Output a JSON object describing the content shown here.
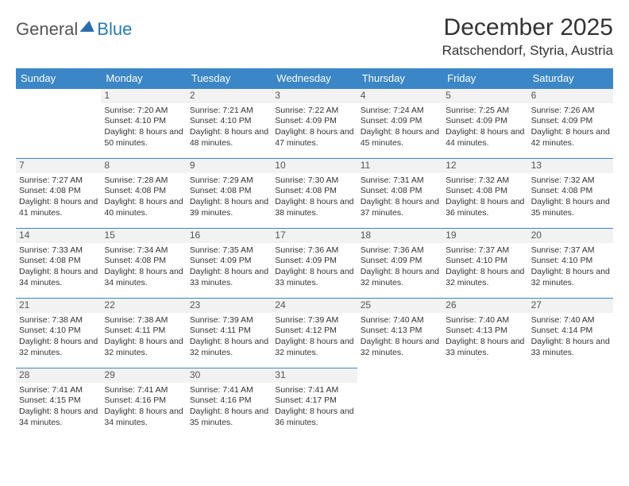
{
  "logo": {
    "part1": "General",
    "part2": "Blue"
  },
  "title": "December 2025",
  "location": "Ratschendorf, Styria, Austria",
  "colors": {
    "header_bg": "#3b86c6",
    "header_text": "#ffffff",
    "daynum_bg": "#f2f2f2",
    "border": "#3b86c6",
    "text": "#333333",
    "logo_gray": "#555555",
    "logo_blue": "#2a7ab0"
  },
  "typography": {
    "title_fontsize": 30,
    "location_fontsize": 17,
    "head_fontsize": 13,
    "cell_fontsize": 10.5
  },
  "layout": {
    "columns": 7,
    "rows": 5,
    "first_weekday_offset": 1
  },
  "weekdays": [
    "Sunday",
    "Monday",
    "Tuesday",
    "Wednesday",
    "Thursday",
    "Friday",
    "Saturday"
  ],
  "days": [
    {
      "n": 1,
      "sunrise": "7:20 AM",
      "sunset": "4:10 PM",
      "daylight": "8 hours and 50 minutes."
    },
    {
      "n": 2,
      "sunrise": "7:21 AM",
      "sunset": "4:10 PM",
      "daylight": "8 hours and 48 minutes."
    },
    {
      "n": 3,
      "sunrise": "7:22 AM",
      "sunset": "4:09 PM",
      "daylight": "8 hours and 47 minutes."
    },
    {
      "n": 4,
      "sunrise": "7:24 AM",
      "sunset": "4:09 PM",
      "daylight": "8 hours and 45 minutes."
    },
    {
      "n": 5,
      "sunrise": "7:25 AM",
      "sunset": "4:09 PM",
      "daylight": "8 hours and 44 minutes."
    },
    {
      "n": 6,
      "sunrise": "7:26 AM",
      "sunset": "4:09 PM",
      "daylight": "8 hours and 42 minutes."
    },
    {
      "n": 7,
      "sunrise": "7:27 AM",
      "sunset": "4:08 PM",
      "daylight": "8 hours and 41 minutes."
    },
    {
      "n": 8,
      "sunrise": "7:28 AM",
      "sunset": "4:08 PM",
      "daylight": "8 hours and 40 minutes."
    },
    {
      "n": 9,
      "sunrise": "7:29 AM",
      "sunset": "4:08 PM",
      "daylight": "8 hours and 39 minutes."
    },
    {
      "n": 10,
      "sunrise": "7:30 AM",
      "sunset": "4:08 PM",
      "daylight": "8 hours and 38 minutes."
    },
    {
      "n": 11,
      "sunrise": "7:31 AM",
      "sunset": "4:08 PM",
      "daylight": "8 hours and 37 minutes."
    },
    {
      "n": 12,
      "sunrise": "7:32 AM",
      "sunset": "4:08 PM",
      "daylight": "8 hours and 36 minutes."
    },
    {
      "n": 13,
      "sunrise": "7:32 AM",
      "sunset": "4:08 PM",
      "daylight": "8 hours and 35 minutes."
    },
    {
      "n": 14,
      "sunrise": "7:33 AM",
      "sunset": "4:08 PM",
      "daylight": "8 hours and 34 minutes."
    },
    {
      "n": 15,
      "sunrise": "7:34 AM",
      "sunset": "4:08 PM",
      "daylight": "8 hours and 34 minutes."
    },
    {
      "n": 16,
      "sunrise": "7:35 AM",
      "sunset": "4:09 PM",
      "daylight": "8 hours and 33 minutes."
    },
    {
      "n": 17,
      "sunrise": "7:36 AM",
      "sunset": "4:09 PM",
      "daylight": "8 hours and 33 minutes."
    },
    {
      "n": 18,
      "sunrise": "7:36 AM",
      "sunset": "4:09 PM",
      "daylight": "8 hours and 32 minutes."
    },
    {
      "n": 19,
      "sunrise": "7:37 AM",
      "sunset": "4:10 PM",
      "daylight": "8 hours and 32 minutes."
    },
    {
      "n": 20,
      "sunrise": "7:37 AM",
      "sunset": "4:10 PM",
      "daylight": "8 hours and 32 minutes."
    },
    {
      "n": 21,
      "sunrise": "7:38 AM",
      "sunset": "4:10 PM",
      "daylight": "8 hours and 32 minutes."
    },
    {
      "n": 22,
      "sunrise": "7:38 AM",
      "sunset": "4:11 PM",
      "daylight": "8 hours and 32 minutes."
    },
    {
      "n": 23,
      "sunrise": "7:39 AM",
      "sunset": "4:11 PM",
      "daylight": "8 hours and 32 minutes."
    },
    {
      "n": 24,
      "sunrise": "7:39 AM",
      "sunset": "4:12 PM",
      "daylight": "8 hours and 32 minutes."
    },
    {
      "n": 25,
      "sunrise": "7:40 AM",
      "sunset": "4:13 PM",
      "daylight": "8 hours and 32 minutes."
    },
    {
      "n": 26,
      "sunrise": "7:40 AM",
      "sunset": "4:13 PM",
      "daylight": "8 hours and 33 minutes."
    },
    {
      "n": 27,
      "sunrise": "7:40 AM",
      "sunset": "4:14 PM",
      "daylight": "8 hours and 33 minutes."
    },
    {
      "n": 28,
      "sunrise": "7:41 AM",
      "sunset": "4:15 PM",
      "daylight": "8 hours and 34 minutes."
    },
    {
      "n": 29,
      "sunrise": "7:41 AM",
      "sunset": "4:16 PM",
      "daylight": "8 hours and 34 minutes."
    },
    {
      "n": 30,
      "sunrise": "7:41 AM",
      "sunset": "4:16 PM",
      "daylight": "8 hours and 35 minutes."
    },
    {
      "n": 31,
      "sunrise": "7:41 AM",
      "sunset": "4:17 PM",
      "daylight": "8 hours and 36 minutes."
    }
  ],
  "labels": {
    "sunrise": "Sunrise:",
    "sunset": "Sunset:",
    "daylight": "Daylight:"
  }
}
